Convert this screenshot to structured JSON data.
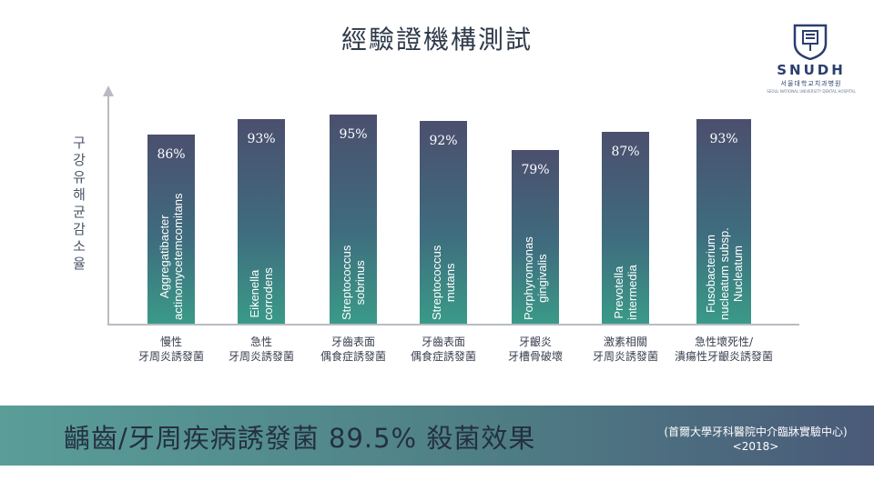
{
  "title": "經驗證機構測試",
  "logo": {
    "mark": "SNUDH",
    "sub": "서울대학교치과병원",
    "tiny": "SEOUL NATIONAL UNIVERSITY DENTAL HOSPITAL",
    "accent": "#2a3e6e"
  },
  "y_axis_label": "구강 유해균 감소율",
  "chart_data": {
    "type": "bar",
    "ylabel": "구강 유해균 감소율",
    "ylim": [
      0,
      100
    ],
    "grid": false,
    "bars": [
      {
        "category": "慢性\n牙周炎誘發菌",
        "bacterium": "Aggregatibacter\nactinomycetemcomitans",
        "value": 86,
        "label": "86%"
      },
      {
        "category": "急性\n牙周炎誘發菌",
        "bacterium": "Eikenella\ncorrodens",
        "value": 93,
        "label": "93%"
      },
      {
        "category": "牙齒表面\n偶食症誘發菌",
        "bacterium": "Streptococcus\nsobrinus",
        "value": 95,
        "label": "95%"
      },
      {
        "category": "牙齒表面\n偶食症誘發菌",
        "bacterium": "Streptococcus\nmutans",
        "value": 92,
        "label": "92%"
      },
      {
        "category": "牙齦炎\n牙槽骨破壞",
        "bacterium": "Porphyromonas\ngingivalis",
        "value": 79,
        "label": "79%"
      },
      {
        "category": "激素相關\n牙周炎誘發菌",
        "bacterium": "Prevotella\nintermedia",
        "value": 87,
        "label": "87%"
      },
      {
        "category": "急性壞死性/\n潰瘍性牙齦炎誘發菌",
        "bacterium": "Fusobacterium\nnucleatum subsp.\nNucleatum",
        "value": 93,
        "label": "93%"
      }
    ],
    "colors": {
      "bar_top": "#4b4f6e",
      "bar_bottom": "#3a9a88"
    }
  },
  "banner": {
    "headline": "齲齒/牙周疾病誘發菌 89.5% 殺菌效果",
    "source": "(首爾大學牙科醫院中介臨牀實驗中心)\n<2018>"
  }
}
